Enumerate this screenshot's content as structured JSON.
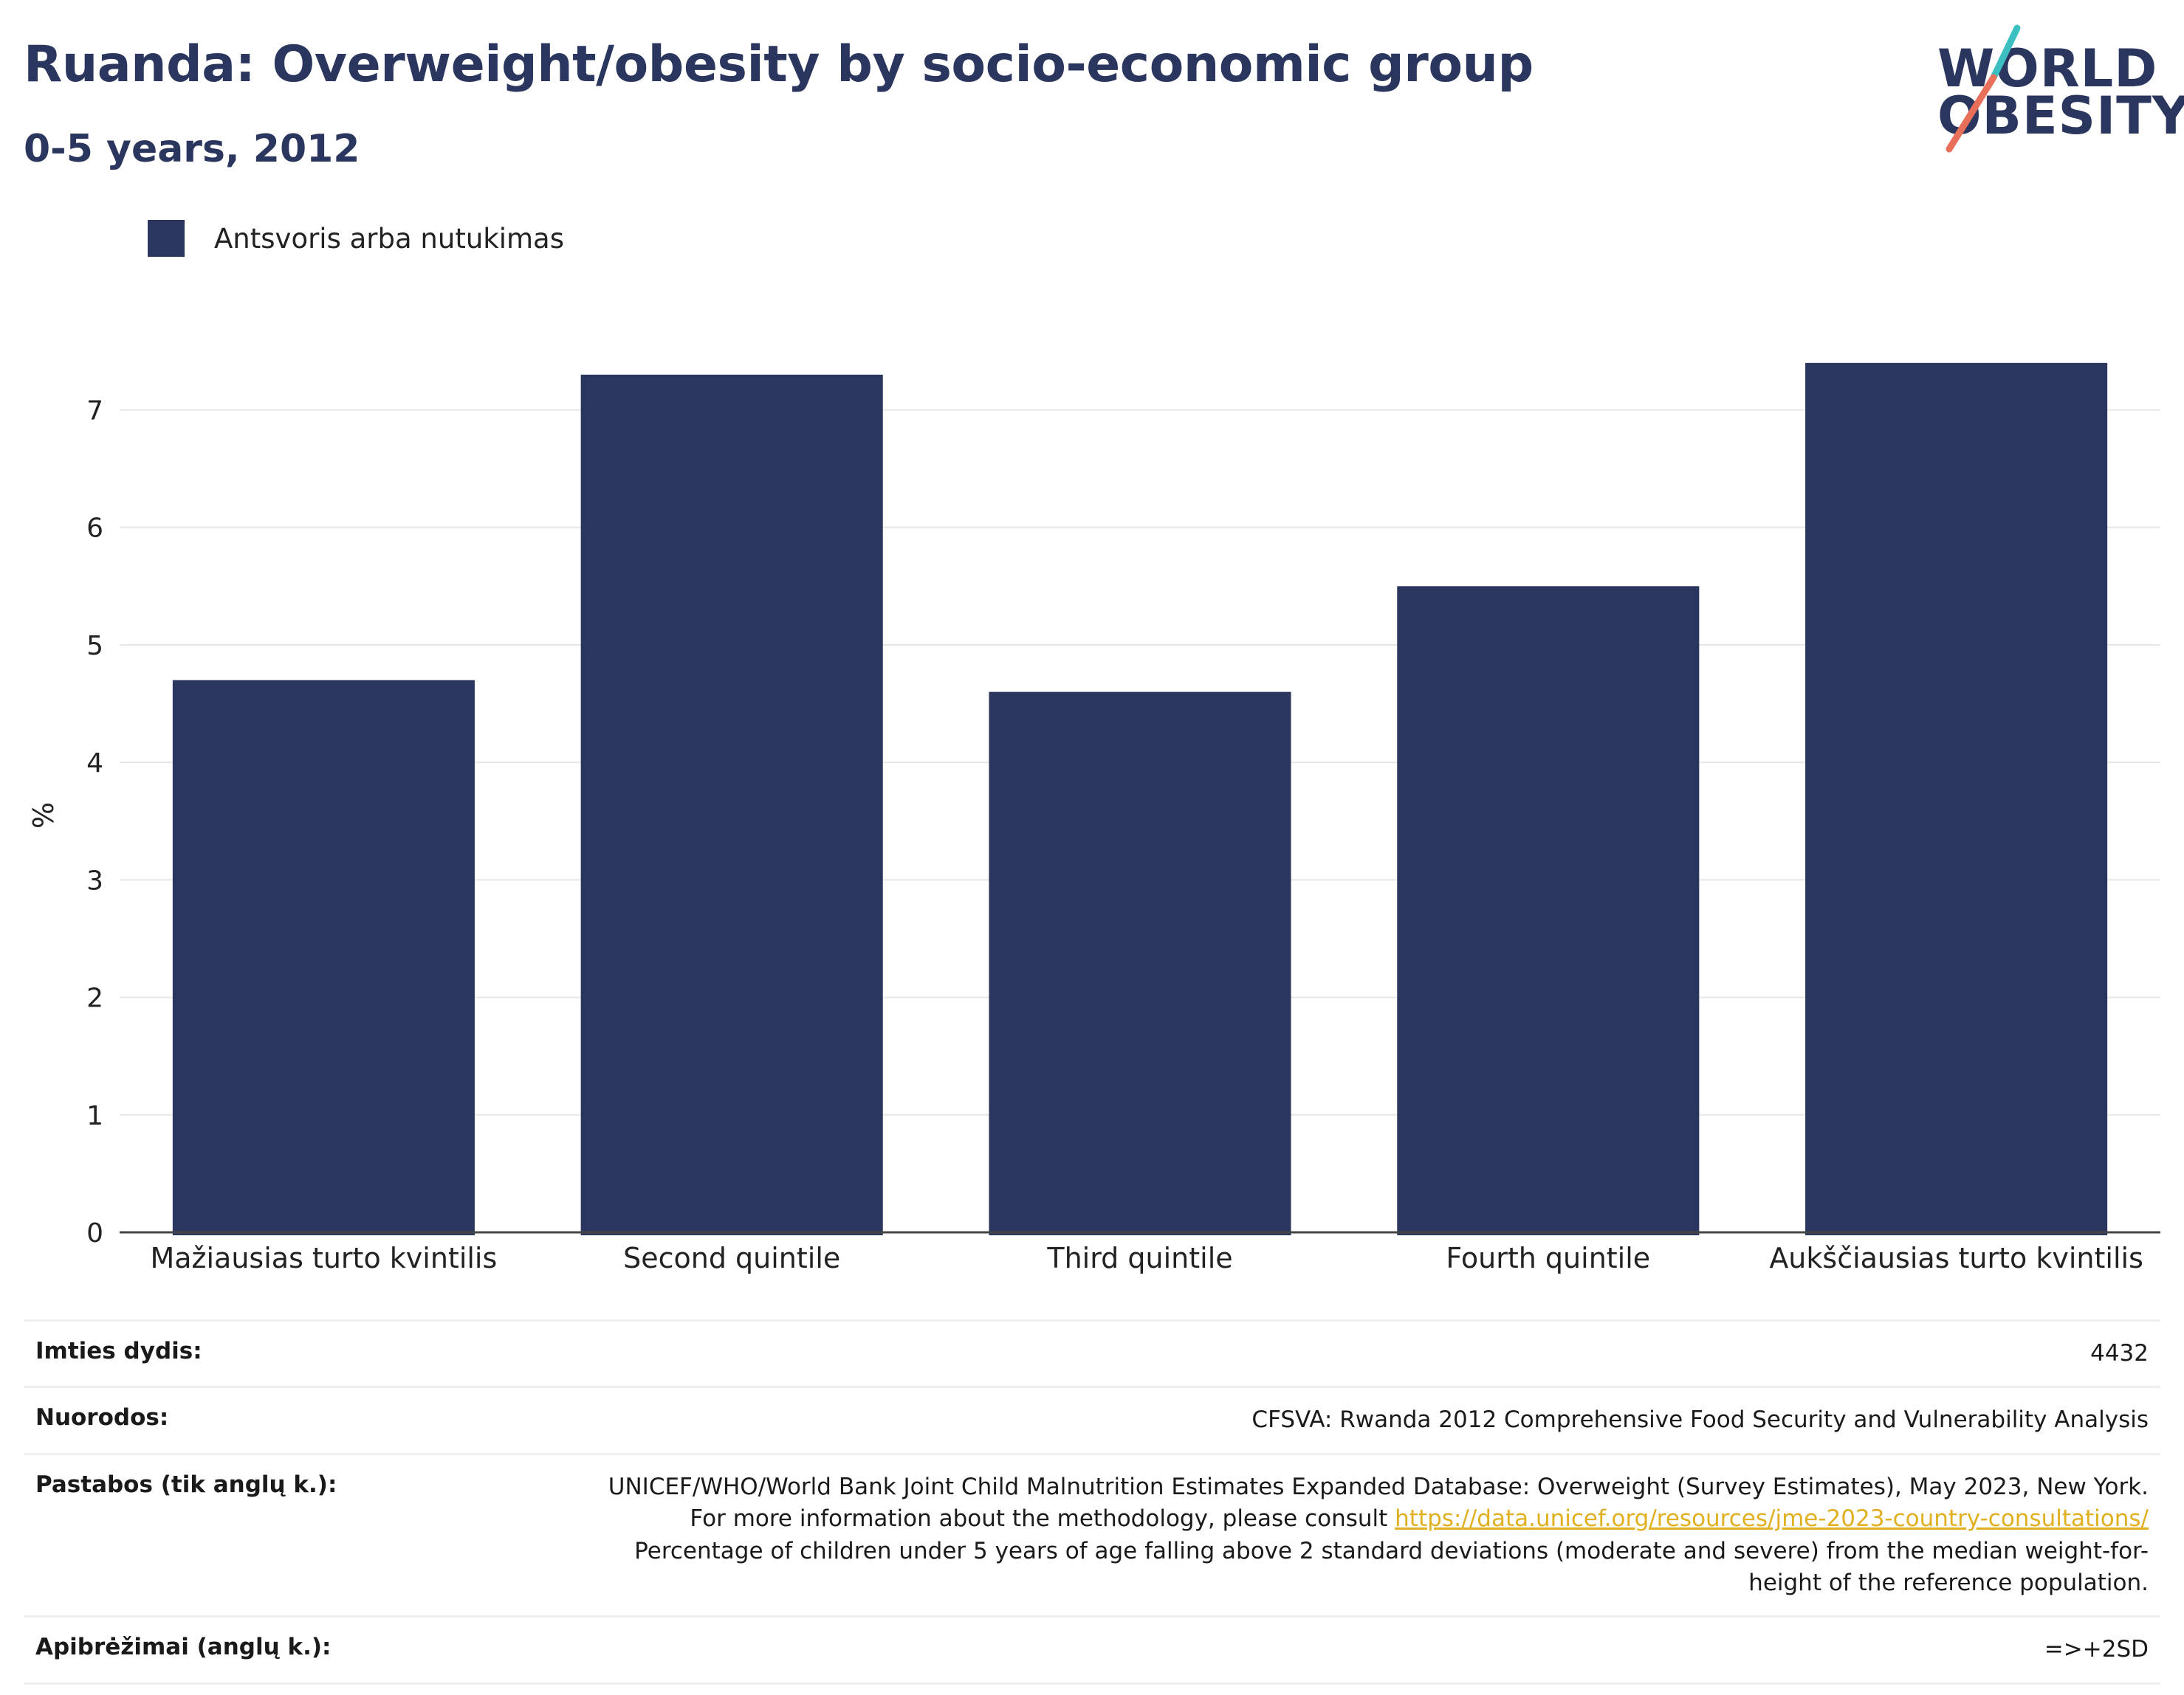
{
  "header": {
    "title": "Ruanda: Overweight/obesity by socio-economic group",
    "subtitle": "0-5 years, 2012"
  },
  "logo": {
    "line1": "WORLD",
    "line2": "OBESITY",
    "colors": {
      "text": "#2b365f",
      "slash_top": "#3bbfc1",
      "slash_bottom": "#e8705b"
    }
  },
  "legend": {
    "label": "Antsvoris arba nutukimas"
  },
  "chart_data": {
    "type": "bar",
    "title": "Ruanda: Overweight/obesity by socio-economic group",
    "subtitle": "0-5 years, 2012",
    "xlabel": "",
    "ylabel": "%",
    "categories": [
      "Mažiausias turto kvintilis",
      "Second quintile",
      "Third quintile",
      "Fourth quintile",
      "Aukščiausias turto kvintilis"
    ],
    "series": [
      {
        "name": "Antsvoris arba nutukimas",
        "values": [
          4.7,
          7.3,
          4.6,
          5.5,
          7.4
        ],
        "color": "#2b365f"
      }
    ],
    "yticks": [
      0,
      1,
      2,
      3,
      4,
      5,
      6,
      7
    ],
    "ylim": [
      0,
      7.6
    ],
    "grid": true,
    "legend_position": "top-left"
  },
  "meta": {
    "sample_size_label": "Imties dydis:",
    "sample_size_value": "4432",
    "references_label": "Nuorodos:",
    "references_value": "CFSVA: Rwanda 2012 Comprehensive Food Security and Vulnerability Analysis",
    "notes_label": "Pastabos (tik anglų k.):",
    "notes_value_1": "UNICEF/WHO/World Bank Joint Child Malnutrition Estimates Expanded Database: Overweight (Survey Estimates), May 2023, New York. For more information about the methodology, please consult ",
    "notes_link": "https://data.unicef.org/resources/jme-2023-country-consultations/",
    "notes_value_2": " Percentage of children under 5 years of age falling above 2 standard deviations (moderate and severe) from the median weight-for-height of the reference population.",
    "definitions_label": "Apibrėžimai (anglų k.):",
    "definitions_value": "=>+2SD"
  }
}
